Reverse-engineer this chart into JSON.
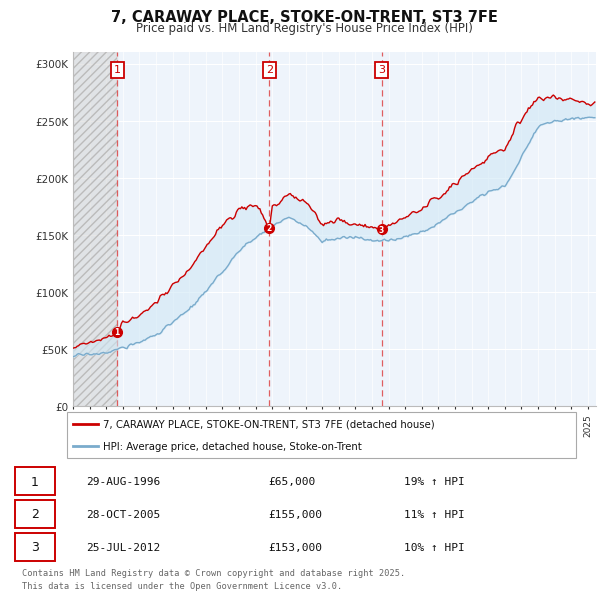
{
  "title": "7, CARAWAY PLACE, STOKE-ON-TRENT, ST3 7FE",
  "subtitle": "Price paid vs. HM Land Registry's House Price Index (HPI)",
  "ylim": [
    0,
    310000
  ],
  "yticks": [
    0,
    50000,
    100000,
    150000,
    200000,
    250000,
    300000
  ],
  "x_start_year": 1994,
  "x_end_year": 2025,
  "red_line_color": "#cc0000",
  "blue_line_color": "#7aabcc",
  "blue_fill_color": "#d0e8f5",
  "dashed_line_color": "#dd4444",
  "transaction_markers": [
    {
      "label": "1",
      "year": 1996.66,
      "price": 65000,
      "date": "29-AUG-1996",
      "pct": "19%"
    },
    {
      "label": "2",
      "year": 2005.83,
      "price": 155000,
      "date": "28-OCT-2005",
      "pct": "11%"
    },
    {
      "label": "3",
      "year": 2012.58,
      "price": 153000,
      "date": "25-JUL-2012",
      "pct": "10%"
    }
  ],
  "legend_red_label": "7, CARAWAY PLACE, STOKE-ON-TRENT, ST3 7FE (detached house)",
  "legend_blue_label": "HPI: Average price, detached house, Stoke-on-Trent",
  "footer_text": "Contains HM Land Registry data © Crown copyright and database right 2025.\nThis data is licensed under the Open Government Licence v3.0.",
  "background_color": "#ffffff"
}
